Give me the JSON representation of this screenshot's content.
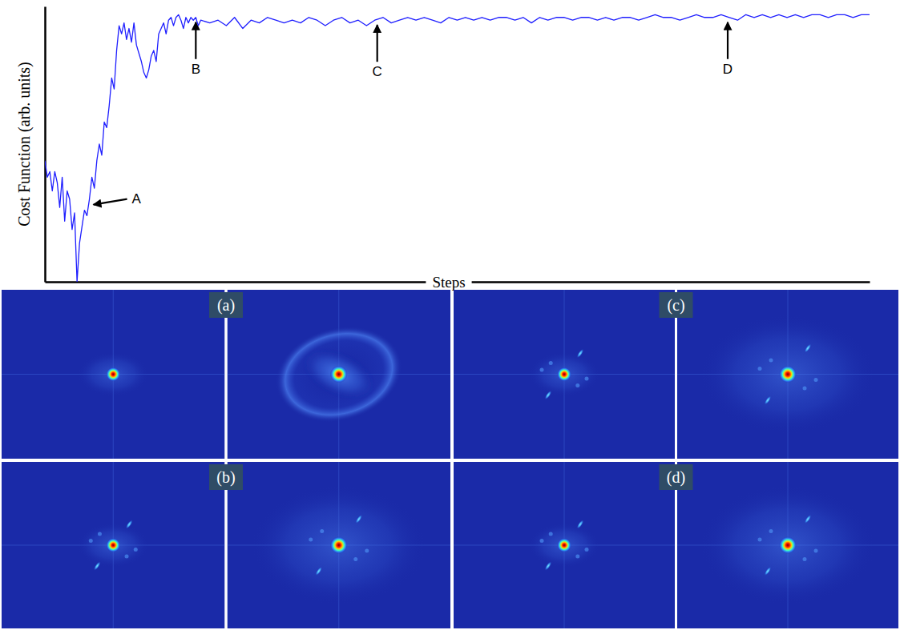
{
  "chart_data": {
    "type": "line",
    "y_label": "Cost Function (arb. units)",
    "x_label": "Steps",
    "tick_labels": false,
    "color": "#1f1fff",
    "xlim": [
      0,
      1000
    ],
    "ylim": [
      0,
      100
    ],
    "x": [
      0,
      3,
      6,
      9,
      12,
      15,
      18,
      21,
      24,
      27,
      30,
      33,
      36,
      39,
      42,
      45,
      48,
      51,
      54,
      57,
      60,
      63,
      66,
      69,
      72,
      75,
      78,
      81,
      84,
      87,
      90,
      93,
      96,
      99,
      102,
      105,
      108,
      111,
      114,
      117,
      120,
      123,
      126,
      129,
      132,
      135,
      138,
      141,
      144,
      147,
      150,
      153,
      156,
      159,
      162,
      165,
      168,
      171,
      174,
      177,
      180,
      183,
      186,
      189,
      200,
      210,
      220,
      230,
      240,
      250,
      260,
      270,
      280,
      290,
      300,
      310,
      320,
      330,
      340,
      350,
      360,
      370,
      380,
      390,
      400,
      410,
      420,
      430,
      440,
      450,
      460,
      470,
      480,
      490,
      500,
      510,
      520,
      530,
      540,
      550,
      560,
      570,
      580,
      590,
      600,
      610,
      620,
      630,
      640,
      650,
      660,
      670,
      680,
      690,
      700,
      710,
      720,
      730,
      740,
      750,
      760,
      770,
      780,
      790,
      800,
      810,
      820,
      830,
      840,
      850,
      860,
      870,
      880,
      890,
      900,
      910,
      920,
      930,
      940,
      950,
      960,
      970,
      980,
      990,
      1000
    ],
    "values": [
      44,
      38,
      40,
      33,
      40,
      36,
      27,
      38,
      22,
      33,
      30,
      19,
      25,
      0,
      14,
      20,
      26,
      24,
      30,
      38,
      34,
      44,
      50,
      46,
      58,
      56,
      64,
      74,
      70,
      84,
      93,
      90,
      94,
      88,
      92,
      87,
      94,
      86,
      83,
      80,
      76,
      74,
      77,
      82,
      84,
      80,
      90,
      92,
      94,
      90,
      95,
      96,
      93,
      96,
      97,
      95,
      92,
      96,
      94,
      96,
      95,
      96,
      93,
      95,
      94,
      95,
      93,
      96,
      92,
      95,
      94,
      96,
      95,
      94,
      95,
      94,
      96,
      95,
      93,
      95,
      96,
      94,
      95,
      93,
      95,
      96,
      94,
      95,
      96,
      95,
      96,
      95,
      94,
      96,
      95,
      96,
      95,
      96,
      95,
      96,
      96,
      95,
      96,
      94,
      96,
      95,
      96,
      96,
      95,
      96,
      96,
      95,
      96,
      95,
      96,
      96,
      95,
      96,
      97,
      96,
      96,
      95,
      96,
      97,
      96,
      96,
      97,
      96,
      95,
      97,
      96,
      97,
      96,
      97,
      96,
      97,
      96,
      97,
      97,
      96,
      97,
      97,
      96,
      97,
      97
    ],
    "annotations": [
      {
        "text": "A",
        "x": 55,
        "y": 28
      },
      {
        "text": "B",
        "x": 183,
        "y": 96
      },
      {
        "text": "C",
        "x": 403,
        "y": 95
      },
      {
        "text": "D",
        "x": 828,
        "y": 96
      }
    ]
  },
  "panels": [
    {
      "label": "(a)"
    },
    {
      "label": "(b)"
    },
    {
      "label": "(c)"
    },
    {
      "label": "(d)"
    }
  ]
}
